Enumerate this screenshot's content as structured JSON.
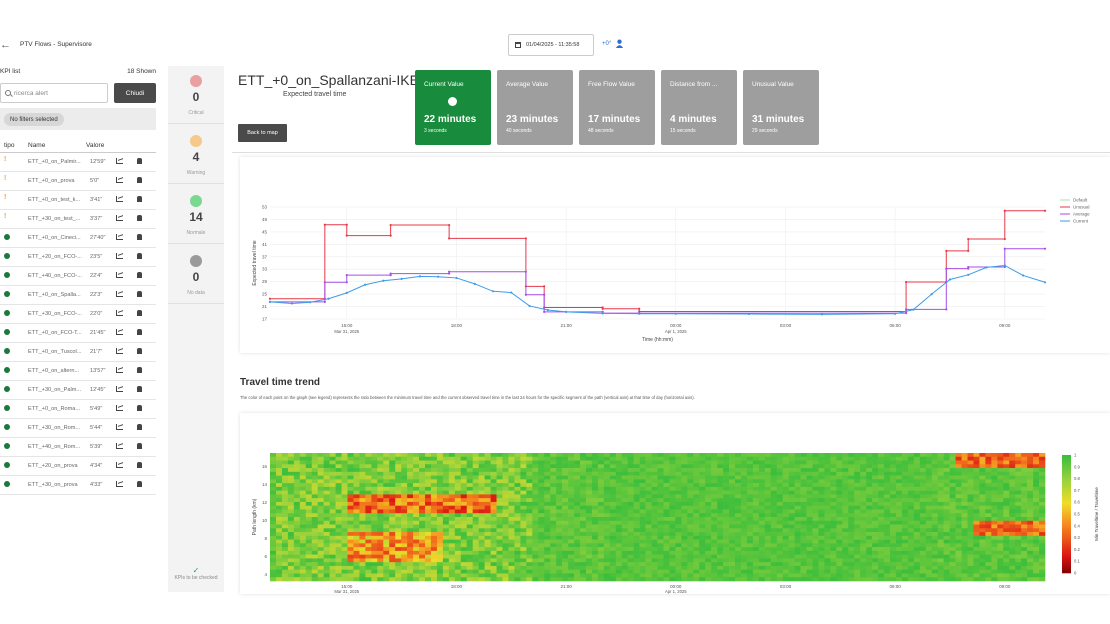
{
  "header": {
    "back_icon": "arrow-left-icon",
    "title": "PTV Flows - Supervisore",
    "datetime": "01/04/2025 - 11:35:58",
    "timezone": "+0°"
  },
  "kpi": {
    "list_label": "KPI list",
    "shown": "18 Shown",
    "search_placeholder": "ricerca alert",
    "close_button": "Chiudi",
    "filter_chip": "No filters selected",
    "columns": {
      "type": "tipo",
      "name": "Name",
      "value": "Valore"
    },
    "rows": [
      {
        "status": "warning",
        "name": "ETT_+0_on_Palmir...",
        "value": "12'59\""
      },
      {
        "status": "warning",
        "name": "ETT_+0_on_prova",
        "value": "5'0\""
      },
      {
        "status": "warning",
        "name": "ETT_+0_on_test_k...",
        "value": "3'41\""
      },
      {
        "status": "warning",
        "name": "ETT_+30_on_test_...",
        "value": "3'37\""
      },
      {
        "status": "normal",
        "name": "ETT_+0_on_Cineci...",
        "value": "27'40\""
      },
      {
        "status": "normal",
        "name": "ETT_+20_on_FCO-...",
        "value": "23'5\""
      },
      {
        "status": "normal",
        "name": "ETT_+40_on_FCO-...",
        "value": "22'4\""
      },
      {
        "status": "normal",
        "name": "ETT_+0_on_Spalla...",
        "value": "22'3\""
      },
      {
        "status": "normal",
        "name": "ETT_+30_on_FCO-...",
        "value": "22'0\""
      },
      {
        "status": "normal",
        "name": "ETT_+0_on_FCO-T...",
        "value": "21'45\""
      },
      {
        "status": "normal",
        "name": "ETT_+0_on_Tuscol...",
        "value": "21'7\""
      },
      {
        "status": "normal",
        "name": "ETT_+0_on_altern...",
        "value": "13'57\""
      },
      {
        "status": "normal",
        "name": "ETT_+30_on_Palm...",
        "value": "12'45\""
      },
      {
        "status": "normal",
        "name": "ETT_+0_on_Roma...",
        "value": "5'49\""
      },
      {
        "status": "normal",
        "name": "ETT_+30_on_Rom...",
        "value": "5'44\""
      },
      {
        "status": "normal",
        "name": "ETT_+40_on_Rom...",
        "value": "5'39\""
      },
      {
        "status": "normal",
        "name": "ETT_+20_on_prova",
        "value": "4'34\""
      },
      {
        "status": "normal",
        "name": "ETT_+30_on_prova",
        "value": "4'33\""
      }
    ]
  },
  "status_cards": [
    {
      "count": "0",
      "label": "Critical",
      "color": "#e8a0a0"
    },
    {
      "count": "4",
      "label": "Warning",
      "color": "#f5c98a"
    },
    {
      "count": "14",
      "label": "Normale",
      "color": "#7bd88f"
    },
    {
      "count": "0",
      "label": "No data",
      "color": "#9a9a9a"
    }
  ],
  "checked_label": "KPIs to be checked",
  "detail": {
    "title": "ETT_+0_on_Spallanzani-IKEA",
    "subtitle": "Expected travel time",
    "back_button": "Back to map",
    "cards": [
      {
        "title": "Current Value",
        "value": "22 minutes",
        "sub": "3 seconds",
        "active": true
      },
      {
        "title": "Average Value",
        "value": "23 minutes",
        "sub": "40 seconds",
        "active": false
      },
      {
        "title": "Free Flow Value",
        "value": "17 minutes",
        "sub": "48 seconds",
        "active": false
      },
      {
        "title": "Distance from ...",
        "value": "4 minutes",
        "sub": "15 seconds",
        "active": false
      },
      {
        "title": "Unusual Value",
        "value": "31 minutes",
        "sub": "29 seconds",
        "active": false
      }
    ]
  },
  "trend": {
    "title": "Travel time trend",
    "description": "The color of each point on the graph (see legend) represents the ratio between the minimum travel time and the current observed travel time in the last 24 hours for the specific segment of the path (vertical axis) at that time of day (horizontal axis)."
  },
  "chart_data": [
    {
      "type": "line",
      "xlabel": "Time (hh:mm)",
      "ylabel": "Expected travel time",
      "x_ticks": [
        "15:00",
        "18:00",
        "21:00",
        "00:00",
        "03:00",
        "06:00",
        "09:00"
      ],
      "x_subticks": [
        "Mar 31, 2025",
        "",
        "",
        "Apr 1, 2025",
        "",
        "",
        ""
      ],
      "y_ticks": [
        "17",
        "21",
        "25",
        "29",
        "33",
        "37",
        "41",
        "45",
        "49",
        "53"
      ],
      "ylim": [
        17,
        53
      ],
      "legend": [
        "Default",
        "Unusual",
        "Average",
        "Current"
      ],
      "colors": {
        "Default": "#a8e0b0",
        "Unusual": "#e8394a",
        "Average": "#a64ee8",
        "Current": "#3d9be9"
      },
      "series": [
        {
          "name": "Unusual",
          "x": [
            12.9,
            14.4,
            14.4,
            15.0,
            15.0,
            16.2,
            16.2,
            17.8,
            17.8,
            19.9,
            19.9,
            20.4,
            20.4,
            22.0,
            22.0,
            23.0,
            23.0,
            30.3,
            30.3,
            31.4,
            31.4,
            32.0,
            32.0,
            33.0,
            33.0,
            34.1
          ],
          "y": [
            23.5,
            23.5,
            47.3,
            47.3,
            43.8,
            43.8,
            47.2,
            47.2,
            42.9,
            42.9,
            27.5,
            27.5,
            20.7,
            20.7,
            20.3,
            20.3,
            19.4,
            19.4,
            28.9,
            28.9,
            38.9,
            38.9,
            42.7,
            42.7,
            51.8,
            51.8
          ]
        },
        {
          "name": "Average",
          "x": [
            12.9,
            14.4,
            14.4,
            15.0,
            15.0,
            16.2,
            16.2,
            17.8,
            17.8,
            19.9,
            19.9,
            20.4,
            20.4,
            22.0,
            22.0,
            23.0,
            23.0,
            30.3,
            30.3,
            31.4,
            31.4,
            32.0,
            32.0,
            33.0,
            33.0,
            34.1
          ],
          "y": [
            22.5,
            22.5,
            28.8,
            28.8,
            31.1,
            31.1,
            31.6,
            31.6,
            32.2,
            32.2,
            24.8,
            24.8,
            19.3,
            19.3,
            18.9,
            18.9,
            18.9,
            18.9,
            20.1,
            20.1,
            33.2,
            33.2,
            33.7,
            33.7,
            39.6,
            39.6
          ]
        },
        {
          "name": "Current",
          "x": [
            12.9,
            13.5,
            14.0,
            14.5,
            15.0,
            15.5,
            16.0,
            16.5,
            17.0,
            17.5,
            18.0,
            18.5,
            19.0,
            19.5,
            20.0,
            20.5,
            21.0,
            22.0,
            23.0,
            24.0,
            26.0,
            28.0,
            30.0,
            30.5,
            31.0,
            31.5,
            32.0,
            32.5,
            33.0,
            33.5,
            34.1
          ],
          "y": [
            22.5,
            22.0,
            22.4,
            23.5,
            25.4,
            28.0,
            29.3,
            29.9,
            30.7,
            30.6,
            30.2,
            28.3,
            25.9,
            25.5,
            21.2,
            19.9,
            19.3,
            18.8,
            18.7,
            18.7,
            18.6,
            18.5,
            18.7,
            20.0,
            25.0,
            29.7,
            31.2,
            33.6,
            34.2,
            31.0,
            28.8
          ]
        }
      ]
    },
    {
      "type": "heatmap",
      "xlabel": "",
      "ylabel": "Path length (km)",
      "x_ticks": [
        "15:00",
        "18:00",
        "21:00",
        "00:00",
        "03:00",
        "06:00",
        "09:00"
      ],
      "x_subticks": [
        "Mar 31, 2025",
        "",
        "",
        "Apr 1, 2025",
        "",
        "",
        ""
      ],
      "y_ticks": [
        "4",
        "6",
        "8",
        "10",
        "12",
        "14",
        "16"
      ],
      "colorbar_label": "Min Traveltime / Traveltime",
      "colorbar_ticks": [
        "0",
        "0.1",
        "0.2",
        "0.3",
        "0.4",
        "0.5",
        "0.6",
        "0.7",
        "0.8",
        "0.9",
        "1"
      ]
    }
  ]
}
